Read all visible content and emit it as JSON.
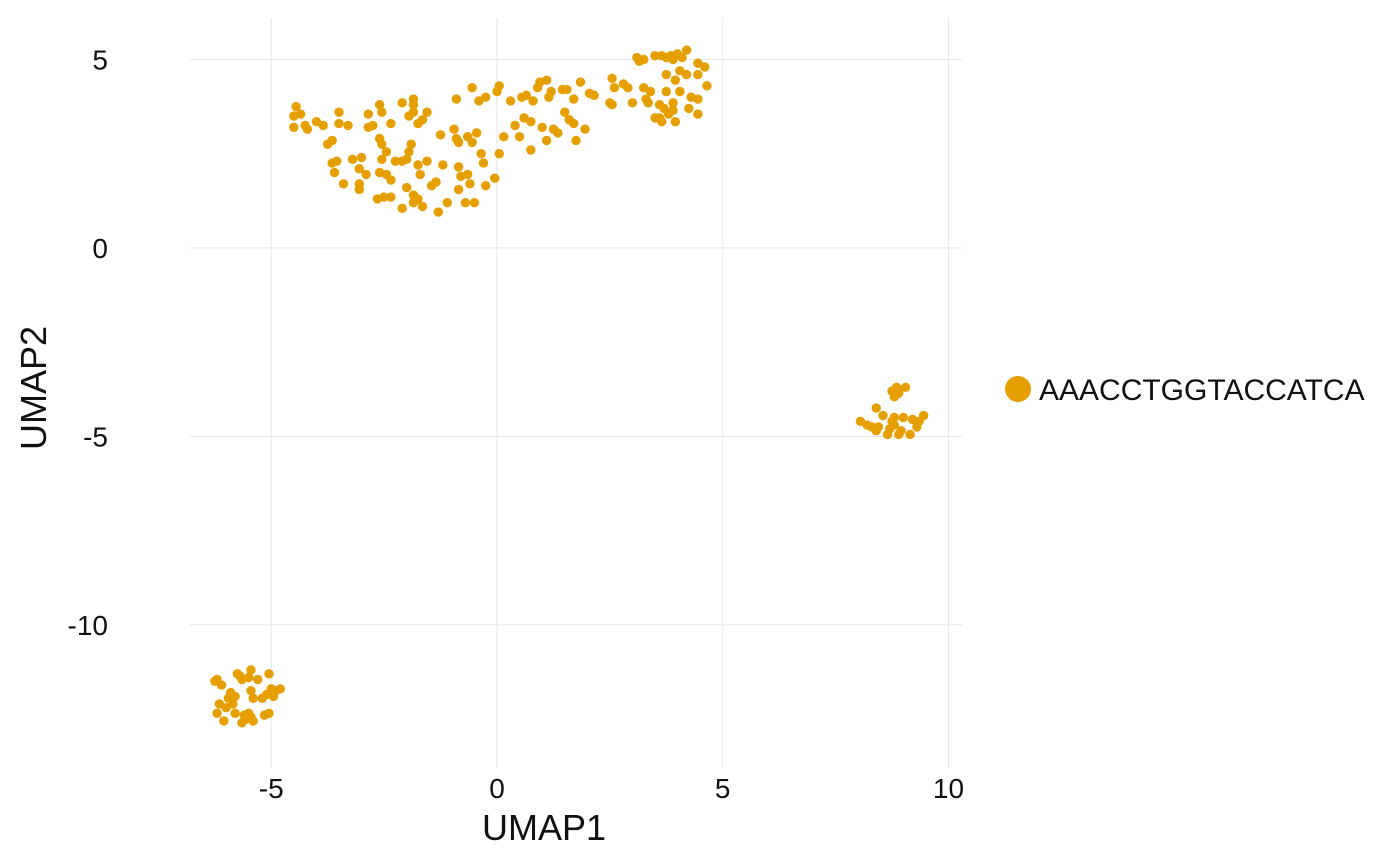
{
  "chart_data": {
    "type": "scatter",
    "title": "",
    "xlabel": "UMAP1",
    "ylabel": "UMAP2",
    "xlim": [
      -6.8,
      10.3
    ],
    "ylim": [
      -13.8,
      6.1
    ],
    "xticks": [
      -5,
      0,
      5,
      10
    ],
    "yticks": [
      5,
      0,
      -5,
      -10
    ],
    "xtick_labels": [
      "-5",
      "0",
      "5",
      "10"
    ],
    "ytick_labels": [
      "5",
      "0",
      "-5",
      "-10"
    ],
    "grid": true,
    "legend": {
      "position": "right",
      "entries": [
        "AAACCTGGTACCATCA"
      ]
    },
    "series": [
      {
        "name": "AAACCTGGTACCATCA",
        "color": "#E69F00",
        "points": [
          [
            -4.45,
            3.75
          ],
          [
            -4.5,
            3.5
          ],
          [
            -4.35,
            3.55
          ],
          [
            -4.5,
            3.2
          ],
          [
            -4.25,
            3.25
          ],
          [
            -4.2,
            3.15
          ],
          [
            -4.0,
            3.35
          ],
          [
            -3.85,
            3.25
          ],
          [
            -3.5,
            3.6
          ],
          [
            -3.3,
            3.25
          ],
          [
            -3.5,
            3.3
          ],
          [
            -3.65,
            2.85
          ],
          [
            -3.75,
            2.75
          ],
          [
            -3.55,
            2.3
          ],
          [
            -3.65,
            2.25
          ],
          [
            -3.6,
            2.0
          ],
          [
            -3.4,
            1.7
          ],
          [
            -3.2,
            2.35
          ],
          [
            -3.05,
            2.1
          ],
          [
            -3.0,
            2.4
          ],
          [
            -3.05,
            1.7
          ],
          [
            -3.05,
            1.55
          ],
          [
            -2.9,
            1.95
          ],
          [
            -2.85,
            3.55
          ],
          [
            -2.75,
            3.25
          ],
          [
            -2.85,
            3.2
          ],
          [
            -2.6,
            3.8
          ],
          [
            -2.55,
            3.6
          ],
          [
            -2.35,
            3.3
          ],
          [
            -2.6,
            2.9
          ],
          [
            -2.55,
            2.75
          ],
          [
            -2.45,
            2.55
          ],
          [
            -2.55,
            2.35
          ],
          [
            -2.6,
            2.0
          ],
          [
            -2.45,
            1.95
          ],
          [
            -2.35,
            1.8
          ],
          [
            -2.25,
            2.3
          ],
          [
            -2.1,
            2.3
          ],
          [
            -2.0,
            2.35
          ],
          [
            -2.5,
            1.35
          ],
          [
            -2.65,
            1.3
          ],
          [
            -2.35,
            1.35
          ],
          [
            -2.1,
            3.85
          ],
          [
            -1.85,
            3.8
          ],
          [
            -1.85,
            3.6
          ],
          [
            -1.95,
            3.5
          ],
          [
            -1.75,
            3.3
          ],
          [
            -1.65,
            3.4
          ],
          [
            -1.55,
            3.6
          ],
          [
            -1.85,
            3.95
          ],
          [
            -1.9,
            2.75
          ],
          [
            -1.95,
            2.55
          ],
          [
            -1.75,
            2.2
          ],
          [
            -1.55,
            2.3
          ],
          [
            -1.7,
            1.95
          ],
          [
            -2.0,
            1.6
          ],
          [
            -1.85,
            1.4
          ],
          [
            -1.75,
            1.3
          ],
          [
            -1.65,
            1.1
          ],
          [
            -1.45,
            1.65
          ],
          [
            -1.35,
            1.75
          ],
          [
            -1.3,
            0.95
          ],
          [
            -1.1,
            1.2
          ],
          [
            -2.1,
            1.05
          ],
          [
            -1.85,
            1.2
          ],
          [
            -1.25,
            3.0
          ],
          [
            -0.95,
            3.15
          ],
          [
            -0.9,
            2.9
          ],
          [
            -0.85,
            2.8
          ],
          [
            -0.65,
            2.95
          ],
          [
            -0.55,
            2.8
          ],
          [
            -0.45,
            3.05
          ],
          [
            -0.85,
            2.15
          ],
          [
            -0.8,
            1.9
          ],
          [
            -0.65,
            1.95
          ],
          [
            -0.6,
            1.7
          ],
          [
            -0.85,
            1.55
          ],
          [
            -0.7,
            1.2
          ],
          [
            -0.5,
            1.2
          ],
          [
            -1.2,
            2.2
          ],
          [
            -0.35,
            2.5
          ],
          [
            -0.3,
            2.25
          ],
          [
            -0.25,
            1.65
          ],
          [
            -0.05,
            1.85
          ],
          [
            -0.9,
            3.95
          ],
          [
            -0.55,
            4.25
          ],
          [
            -0.4,
            3.9
          ],
          [
            -0.25,
            4.0
          ],
          [
            0.0,
            4.15
          ],
          [
            0.05,
            4.3
          ],
          [
            0.05,
            2.5
          ],
          [
            0.15,
            2.95
          ],
          [
            0.3,
            3.9
          ],
          [
            0.4,
            3.25
          ],
          [
            0.5,
            2.95
          ],
          [
            0.55,
            4.0
          ],
          [
            0.6,
            3.45
          ],
          [
            0.65,
            4.05
          ],
          [
            0.75,
            2.6
          ],
          [
            0.75,
            3.35
          ],
          [
            0.8,
            3.9
          ],
          [
            0.9,
            4.25
          ],
          [
            0.95,
            4.4
          ],
          [
            1.0,
            3.2
          ],
          [
            1.1,
            4.45
          ],
          [
            1.15,
            4.0
          ],
          [
            1.1,
            2.85
          ],
          [
            1.2,
            4.15
          ],
          [
            1.25,
            3.15
          ],
          [
            1.35,
            3.05
          ],
          [
            1.45,
            4.2
          ],
          [
            1.55,
            4.2
          ],
          [
            1.5,
            3.6
          ],
          [
            1.6,
            3.4
          ],
          [
            1.7,
            3.3
          ],
          [
            1.75,
            2.85
          ],
          [
            1.7,
            3.95
          ],
          [
            1.85,
            4.4
          ],
          [
            1.95,
            3.15
          ],
          [
            2.05,
            4.1
          ],
          [
            2.15,
            4.05
          ],
          [
            2.5,
            3.85
          ],
          [
            2.55,
            3.8
          ],
          [
            2.55,
            4.5
          ],
          [
            2.6,
            4.25
          ],
          [
            2.8,
            4.35
          ],
          [
            2.9,
            4.25
          ],
          [
            3.0,
            3.85
          ],
          [
            3.1,
            5.05
          ],
          [
            3.15,
            4.95
          ],
          [
            3.25,
            5.0
          ],
          [
            3.25,
            4.25
          ],
          [
            3.3,
            3.95
          ],
          [
            3.35,
            3.85
          ],
          [
            3.4,
            4.15
          ],
          [
            3.5,
            5.1
          ],
          [
            3.5,
            3.45
          ],
          [
            3.6,
            3.45
          ],
          [
            3.6,
            3.8
          ],
          [
            3.65,
            5.1
          ],
          [
            3.65,
            3.35
          ],
          [
            3.7,
            3.7
          ],
          [
            3.75,
            4.15
          ],
          [
            3.75,
            5.05
          ],
          [
            3.75,
            4.6
          ],
          [
            3.8,
            3.55
          ],
          [
            3.85,
            5.1
          ],
          [
            3.9,
            3.85
          ],
          [
            3.9,
            3.65
          ],
          [
            3.9,
            5.0
          ],
          [
            3.95,
            3.35
          ],
          [
            3.95,
            4.45
          ],
          [
            4.0,
            5.15
          ],
          [
            4.05,
            4.7
          ],
          [
            4.05,
            4.15
          ],
          [
            4.1,
            5.05
          ],
          [
            4.2,
            5.25
          ],
          [
            4.2,
            4.6
          ],
          [
            4.25,
            3.7
          ],
          [
            4.3,
            4.0
          ],
          [
            4.45,
            4.9
          ],
          [
            4.45,
            4.6
          ],
          [
            4.45,
            3.95
          ],
          [
            4.45,
            3.55
          ],
          [
            4.6,
            4.8
          ],
          [
            4.65,
            4.3
          ],
          [
            -6.2,
            -11.45
          ],
          [
            -6.1,
            -11.6
          ],
          [
            -6.25,
            -11.5
          ],
          [
            -6.15,
            -12.1
          ],
          [
            -6.2,
            -12.35
          ],
          [
            -6.05,
            -12.55
          ],
          [
            -6.0,
            -12.2
          ],
          [
            -5.95,
            -11.95
          ],
          [
            -5.9,
            -11.8
          ],
          [
            -5.85,
            -12.1
          ],
          [
            -5.8,
            -12.35
          ],
          [
            -5.75,
            -11.3
          ],
          [
            -5.7,
            -11.35
          ],
          [
            -5.65,
            -11.45
          ],
          [
            -5.8,
            -11.9
          ],
          [
            -5.9,
            -11.85
          ],
          [
            -5.6,
            -12.4
          ],
          [
            -5.65,
            -12.6
          ],
          [
            -5.55,
            -12.5
          ],
          [
            -5.5,
            -12.35
          ],
          [
            -5.45,
            -12.45
          ],
          [
            -5.4,
            -12.55
          ],
          [
            -5.45,
            -11.75
          ],
          [
            -5.4,
            -11.95
          ],
          [
            -5.45,
            -11.2
          ],
          [
            -5.5,
            -11.4
          ],
          [
            -5.3,
            -11.45
          ],
          [
            -5.2,
            -11.95
          ],
          [
            -5.15,
            -12.4
          ],
          [
            -5.1,
            -11.85
          ],
          [
            -5.0,
            -11.7
          ],
          [
            -5.05,
            -11.3
          ],
          [
            -5.05,
            -12.35
          ],
          [
            -4.95,
            -11.9
          ],
          [
            -4.9,
            -11.75
          ],
          [
            -4.8,
            -11.7
          ],
          [
            8.05,
            -4.6
          ],
          [
            8.2,
            -4.7
          ],
          [
            8.3,
            -4.75
          ],
          [
            8.4,
            -4.85
          ],
          [
            8.45,
            -4.75
          ],
          [
            8.55,
            -4.45
          ],
          [
            8.4,
            -4.25
          ],
          [
            8.65,
            -4.95
          ],
          [
            8.7,
            -4.8
          ],
          [
            8.75,
            -4.6
          ],
          [
            8.8,
            -4.7
          ],
          [
            8.8,
            -4.5
          ],
          [
            8.75,
            -3.8
          ],
          [
            8.8,
            -3.95
          ],
          [
            8.85,
            -3.7
          ],
          [
            8.9,
            -3.85
          ],
          [
            8.9,
            -4.95
          ],
          [
            8.95,
            -4.85
          ],
          [
            9.0,
            -4.5
          ],
          [
            9.05,
            -3.7
          ],
          [
            9.15,
            -4.95
          ],
          [
            9.2,
            -4.55
          ],
          [
            9.3,
            -4.75
          ],
          [
            9.35,
            -4.6
          ],
          [
            9.45,
            -4.45
          ]
        ]
      }
    ]
  }
}
